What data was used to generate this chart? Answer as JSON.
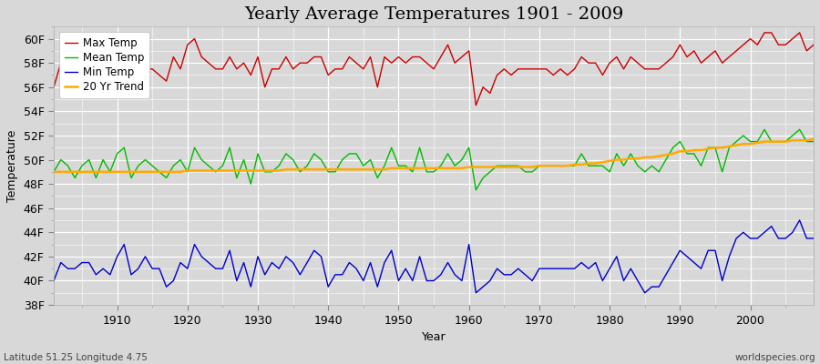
{
  "title": "Yearly Average Temperatures 1901 - 2009",
  "xlabel": "Year",
  "ylabel": "Temperature",
  "bottom_left": "Latitude 51.25 Longitude 4.75",
  "bottom_right": "worldspecies.org",
  "legend_labels": [
    "Max Temp",
    "Mean Temp",
    "Min Temp",
    "20 Yr Trend"
  ],
  "legend_colors": [
    "#cc0000",
    "#00bb00",
    "#0000cc",
    "#ffaa00"
  ],
  "ylim": [
    38,
    61
  ],
  "yticks": [
    38,
    40,
    42,
    44,
    46,
    48,
    50,
    52,
    54,
    56,
    58,
    60
  ],
  "ytick_labels": [
    "38F",
    "40F",
    "42F",
    "44F",
    "46F",
    "48F",
    "50F",
    "52F",
    "54F",
    "56F",
    "58F",
    "60F"
  ],
  "xlim": [
    1901,
    2009
  ],
  "xticks": [
    1910,
    1920,
    1930,
    1940,
    1950,
    1960,
    1970,
    1980,
    1990,
    2000
  ],
  "bg_color": "#d8d8d8",
  "plot_bg_color": "#d8d8d8",
  "title_fontsize": 14,
  "axis_fontsize": 9,
  "line_width": 1.0,
  "years": [
    1901,
    1902,
    1903,
    1904,
    1905,
    1906,
    1907,
    1908,
    1909,
    1910,
    1911,
    1912,
    1913,
    1914,
    1915,
    1916,
    1917,
    1918,
    1919,
    1920,
    1921,
    1922,
    1923,
    1924,
    1925,
    1926,
    1927,
    1928,
    1929,
    1930,
    1931,
    1932,
    1933,
    1934,
    1935,
    1936,
    1937,
    1938,
    1939,
    1940,
    1941,
    1942,
    1943,
    1944,
    1945,
    1946,
    1947,
    1948,
    1949,
    1950,
    1951,
    1952,
    1953,
    1954,
    1955,
    1956,
    1957,
    1958,
    1959,
    1960,
    1961,
    1962,
    1963,
    1964,
    1965,
    1966,
    1967,
    1968,
    1969,
    1970,
    1971,
    1972,
    1973,
    1974,
    1975,
    1976,
    1977,
    1978,
    1979,
    1980,
    1981,
    1982,
    1983,
    1984,
    1985,
    1986,
    1987,
    1988,
    1989,
    1990,
    1991,
    1992,
    1993,
    1994,
    1995,
    1996,
    1997,
    1998,
    1999,
    2000,
    2001,
    2002,
    2003,
    2004,
    2005,
    2006,
    2007,
    2008,
    2009
  ],
  "max_temp": [
    56.0,
    58.0,
    57.5,
    56.5,
    57.0,
    58.0,
    57.0,
    58.5,
    57.5,
    57.0,
    59.0,
    57.5,
    57.5,
    57.5,
    57.5,
    57.0,
    56.5,
    58.5,
    57.5,
    59.5,
    60.0,
    58.5,
    58.0,
    57.5,
    57.5,
    58.5,
    57.5,
    58.0,
    57.0,
    58.5,
    56.0,
    57.5,
    57.5,
    58.5,
    57.5,
    58.0,
    58.0,
    58.5,
    58.5,
    57.0,
    57.5,
    57.5,
    58.5,
    58.0,
    57.5,
    58.5,
    56.0,
    58.5,
    58.0,
    58.5,
    58.0,
    58.5,
    58.5,
    58.0,
    57.5,
    58.5,
    59.5,
    58.0,
    58.5,
    59.0,
    54.5,
    56.0,
    55.5,
    57.0,
    57.5,
    57.0,
    57.5,
    57.5,
    57.5,
    57.5,
    57.5,
    57.0,
    57.5,
    57.0,
    57.5,
    58.5,
    58.0,
    58.0,
    57.0,
    58.0,
    58.5,
    57.5,
    58.5,
    58.0,
    57.5,
    57.5,
    57.5,
    58.0,
    58.5,
    59.5,
    58.5,
    59.0,
    58.0,
    58.5,
    59.0,
    58.0,
    58.5,
    59.0,
    59.5,
    60.0,
    59.5,
    60.5,
    60.5,
    59.5,
    59.5,
    60.0,
    60.5,
    59.0,
    59.5
  ],
  "mean_temp": [
    49.0,
    50.0,
    49.5,
    48.5,
    49.5,
    50.0,
    48.5,
    50.0,
    49.0,
    50.5,
    51.0,
    48.5,
    49.5,
    50.0,
    49.5,
    49.0,
    48.5,
    49.5,
    50.0,
    49.0,
    51.0,
    50.0,
    49.5,
    49.0,
    49.5,
    51.0,
    48.5,
    50.0,
    48.0,
    50.5,
    49.0,
    49.0,
    49.5,
    50.5,
    50.0,
    49.0,
    49.5,
    50.5,
    50.0,
    49.0,
    49.0,
    50.0,
    50.5,
    50.5,
    49.5,
    50.0,
    48.5,
    49.5,
    51.0,
    49.5,
    49.5,
    49.0,
    51.0,
    49.0,
    49.0,
    49.5,
    50.5,
    49.5,
    50.0,
    51.0,
    47.5,
    48.5,
    49.0,
    49.5,
    49.5,
    49.5,
    49.5,
    49.0,
    49.0,
    49.5,
    49.5,
    49.5,
    49.5,
    49.5,
    49.5,
    50.5,
    49.5,
    49.5,
    49.5,
    49.0,
    50.5,
    49.5,
    50.5,
    49.5,
    49.0,
    49.5,
    49.0,
    50.0,
    51.0,
    51.5,
    50.5,
    50.5,
    49.5,
    51.0,
    51.0,
    49.0,
    51.0,
    51.5,
    52.0,
    51.5,
    51.5,
    52.5,
    51.5,
    51.5,
    51.5,
    52.0,
    52.5,
    51.5,
    51.5
  ],
  "min_temp": [
    40.0,
    41.5,
    41.0,
    41.0,
    41.5,
    41.5,
    40.5,
    41.0,
    40.5,
    42.0,
    43.0,
    40.5,
    41.0,
    42.0,
    41.0,
    41.0,
    39.5,
    40.0,
    41.5,
    41.0,
    43.0,
    42.0,
    41.5,
    41.0,
    41.0,
    42.5,
    40.0,
    41.5,
    39.5,
    42.0,
    40.5,
    41.5,
    41.0,
    42.0,
    41.5,
    40.5,
    41.5,
    42.5,
    42.0,
    39.5,
    40.5,
    40.5,
    41.5,
    41.0,
    40.0,
    41.5,
    39.5,
    41.5,
    42.5,
    40.0,
    41.0,
    40.0,
    42.0,
    40.0,
    40.0,
    40.5,
    41.5,
    40.5,
    40.0,
    43.0,
    39.0,
    39.5,
    40.0,
    41.0,
    40.5,
    40.5,
    41.0,
    40.5,
    40.0,
    41.0,
    41.0,
    41.0,
    41.0,
    41.0,
    41.0,
    41.5,
    41.0,
    41.5,
    40.0,
    41.0,
    42.0,
    40.0,
    41.0,
    40.0,
    39.0,
    39.5,
    39.5,
    40.5,
    41.5,
    42.5,
    42.0,
    41.5,
    41.0,
    42.5,
    42.5,
    40.0,
    42.0,
    43.5,
    44.0,
    43.5,
    43.5,
    44.0,
    44.5,
    43.5,
    43.5,
    44.0,
    45.0,
    43.5,
    43.5
  ],
  "trend_values": [
    49.0,
    49.0,
    49.0,
    49.0,
    49.0,
    49.0,
    49.0,
    49.0,
    49.0,
    49.0,
    49.0,
    49.0,
    49.0,
    49.0,
    49.0,
    49.0,
    49.0,
    49.0,
    49.0,
    49.1,
    49.1,
    49.1,
    49.1,
    49.1,
    49.1,
    49.1,
    49.1,
    49.1,
    49.1,
    49.1,
    49.1,
    49.1,
    49.1,
    49.2,
    49.2,
    49.2,
    49.2,
    49.2,
    49.2,
    49.2,
    49.2,
    49.2,
    49.2,
    49.2,
    49.2,
    49.2,
    49.2,
    49.2,
    49.3,
    49.3,
    49.3,
    49.3,
    49.3,
    49.3,
    49.3,
    49.3,
    49.3,
    49.3,
    49.3,
    49.4,
    49.4,
    49.4,
    49.4,
    49.4,
    49.4,
    49.4,
    49.4,
    49.4,
    49.4,
    49.5,
    49.5,
    49.5,
    49.5,
    49.5,
    49.6,
    49.6,
    49.7,
    49.7,
    49.8,
    49.9,
    50.0,
    50.0,
    50.1,
    50.1,
    50.2,
    50.2,
    50.3,
    50.4,
    50.5,
    50.7,
    50.7,
    50.8,
    50.8,
    50.9,
    51.0,
    51.0,
    51.1,
    51.2,
    51.3,
    51.3,
    51.4,
    51.5,
    51.5,
    51.5,
    51.5,
    51.6,
    51.6,
    51.6,
    51.7
  ]
}
